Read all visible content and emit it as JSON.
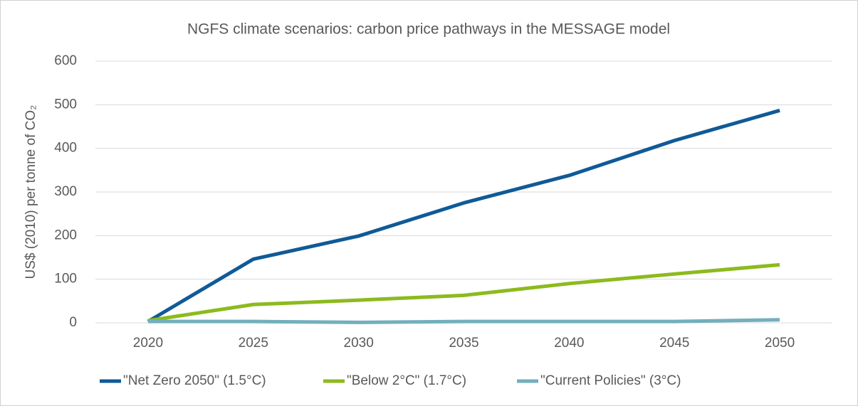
{
  "chart_data": {
    "type": "line",
    "title": "NGFS climate scenarios: carbon price pathways in the MESSAGE model",
    "y_label": "US$  (2010) per tonne of CO₂",
    "x": [
      2020,
      2025,
      2030,
      2035,
      2040,
      2045,
      2050
    ],
    "xlim": [
      2017.5,
      2052.5
    ],
    "xticks": [
      2020,
      2025,
      2030,
      2035,
      2040,
      2045,
      2050
    ],
    "ylim": [
      0,
      600
    ],
    "yticks": [
      0,
      100,
      200,
      300,
      400,
      500,
      600
    ],
    "grid": true,
    "legend": "bottom",
    "series": [
      {
        "name": "\"Net Zero 2050\" (1.5°C)",
        "color": "#105a97",
        "values": [
          3,
          146,
          199,
          275,
          338,
          418,
          487
        ]
      },
      {
        "name": "\"Below 2°C\" (1.7°C)",
        "color": "#8dba1e",
        "values": [
          5,
          42,
          52,
          63,
          90,
          112,
          133
        ]
      },
      {
        "name": "\"Current Policies\" (3°C)",
        "color": "#73afbd",
        "values": [
          3,
          3,
          1,
          3,
          3,
          3,
          7
        ]
      }
    ]
  }
}
